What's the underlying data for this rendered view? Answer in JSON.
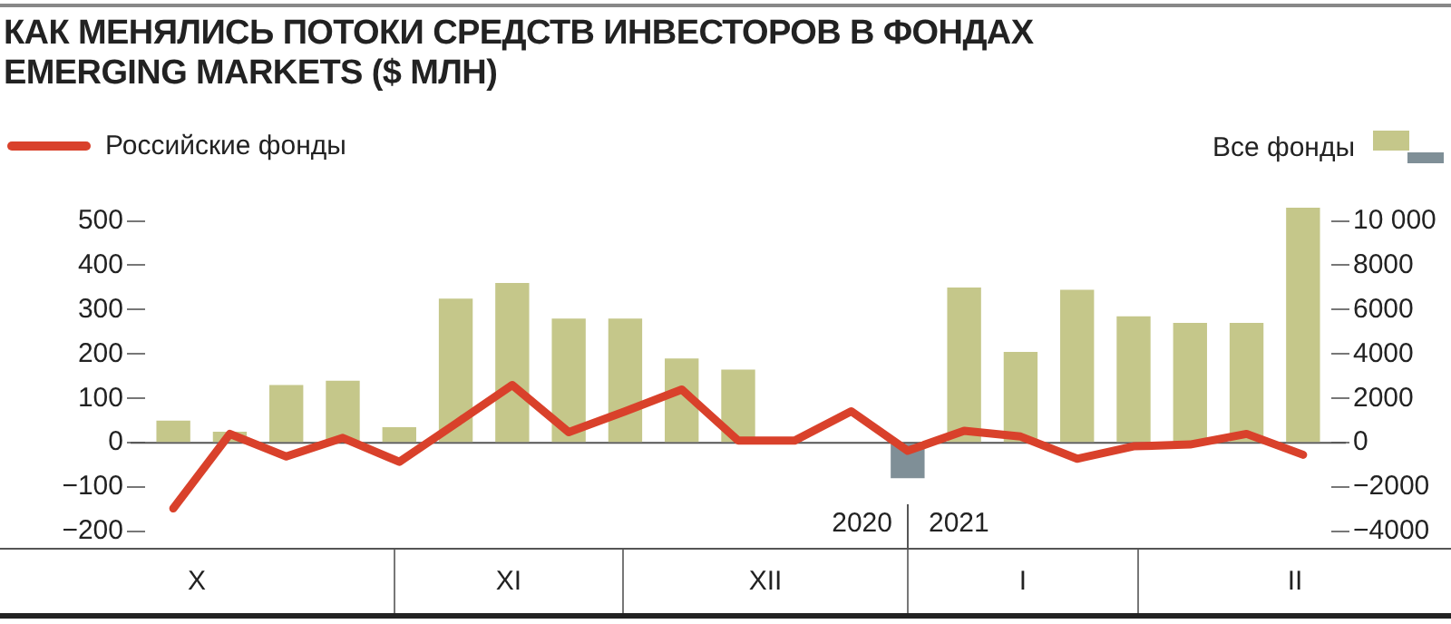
{
  "chart_data": {
    "type": "bar",
    "title": "КАК МЕНЯЛИСЬ ПОТОКИ СРЕДСТВ ИНВЕСТОРОВ В ФОНДАХ EMERGING MARKETS ($ МЛН)",
    "categories": [
      null,
      null,
      null,
      null,
      null,
      null,
      null,
      null,
      null,
      null,
      null,
      null,
      null,
      null,
      null,
      null,
      null,
      null,
      null,
      null,
      null
    ],
    "series": [
      {
        "name": "Российские фонды",
        "type": "line",
        "color": "#d9412b",
        "values": [
          -148,
          20,
          -31,
          11,
          -43,
          43,
          130,
          24,
          71,
          120,
          5,
          5,
          71,
          -18,
          27,
          14,
          -36,
          -8,
          -4,
          20,
          -27
        ]
      },
      {
        "name": "Все фонды",
        "axis": "y2",
        "colors": [
          "#c5c78a",
          "#c5c78a",
          "#c5c78a",
          "#c5c78a",
          "#c5c78a",
          "#c5c78a",
          "#c5c78a",
          "#c5c78a",
          "#c5c78a",
          "#c5c78a",
          "#c5c78a",
          "#c5c78a",
          "#c5c78a",
          "#7f8f97",
          "#c5c78a",
          "#c5c78a",
          "#c5c78a",
          "#c5c78a",
          "#c5c78a",
          "#c5c78a",
          "#c5c78a"
        ],
        "values": [
          1000,
          500,
          2600,
          2800,
          700,
          6500,
          7200,
          5600,
          5600,
          3800,
          3300,
          null,
          null,
          -1600,
          7000,
          4100,
          6900,
          5700,
          5400,
          5400,
          10600
        ]
      }
    ],
    "ylim": [
      -200,
      540
    ],
    "yticks": [
      {
        "value": -200,
        "label": "−200"
      },
      {
        "value": -100,
        "label": "−100"
      },
      0,
      100,
      200,
      300,
      400,
      500
    ],
    "y2lim": [
      -4000,
      10800
    ],
    "y2ticks": [
      {
        "value": -4000,
        "label": "−4000"
      },
      {
        "value": -2000,
        "label": "−2000"
      },
      0,
      2000,
      4000,
      6000,
      8000,
      {
        "value": 10000,
        "label": "10 000"
      }
    ],
    "ref_lines": [
      {
        "axis": "y",
        "value": 0,
        "color": "#555555"
      }
    ],
    "annotations": [
      "2020",
      "2021",
      "X",
      "XI",
      "XII",
      "I",
      "II"
    ],
    "legend": "top",
    "marker": "none",
    "line_style": "solid",
    "grid": false
  }
}
